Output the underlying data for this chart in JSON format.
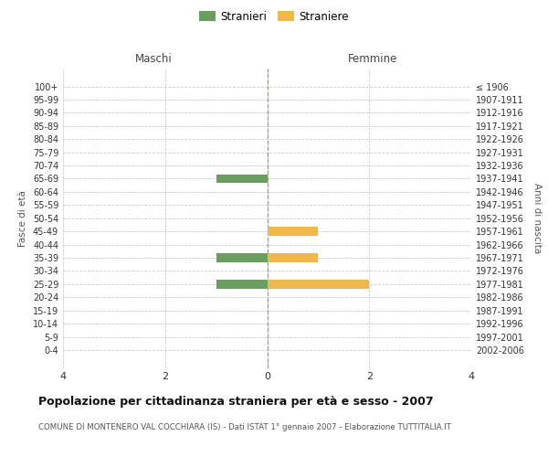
{
  "age_groups": [
    "100+",
    "95-99",
    "90-94",
    "85-89",
    "80-84",
    "75-79",
    "70-74",
    "65-69",
    "60-64",
    "55-59",
    "50-54",
    "45-49",
    "40-44",
    "35-39",
    "30-34",
    "25-29",
    "20-24",
    "15-19",
    "10-14",
    "5-9",
    "0-4"
  ],
  "birth_years": [
    "≤ 1906",
    "1907-1911",
    "1912-1916",
    "1917-1921",
    "1922-1926",
    "1927-1931",
    "1932-1936",
    "1937-1941",
    "1942-1946",
    "1947-1951",
    "1952-1956",
    "1957-1961",
    "1962-1966",
    "1967-1971",
    "1972-1976",
    "1977-1981",
    "1982-1986",
    "1987-1991",
    "1992-1996",
    "1997-2001",
    "2002-2006"
  ],
  "males": [
    0,
    0,
    0,
    0,
    0,
    0,
    0,
    1,
    0,
    0,
    0,
    0,
    0,
    1,
    0,
    1,
    0,
    0,
    0,
    0,
    0
  ],
  "females": [
    0,
    0,
    0,
    0,
    0,
    0,
    0,
    0,
    0,
    0,
    0,
    1,
    0,
    1,
    0,
    2,
    0,
    0,
    0,
    0,
    0
  ],
  "male_color": "#6a9e5e",
  "female_color": "#f0b84b",
  "background_color": "#ffffff",
  "grid_color": "#cccccc",
  "center_line_color": "#a0a060",
  "title": "Popolazione per cittadinanza straniera per età e sesso - 2007",
  "subtitle": "COMUNE DI MONTENERO VAL COCCHIARA (IS) - Dati ISTAT 1° gennaio 2007 - Elaborazione TUTTITALIA.IT",
  "xlabel_left": "Maschi",
  "xlabel_right": "Femmine",
  "ylabel_left": "Fasce di età",
  "ylabel_right": "Anni di nascita",
  "legend_male": "Stranieri",
  "legend_female": "Straniere",
  "xlim": 4
}
